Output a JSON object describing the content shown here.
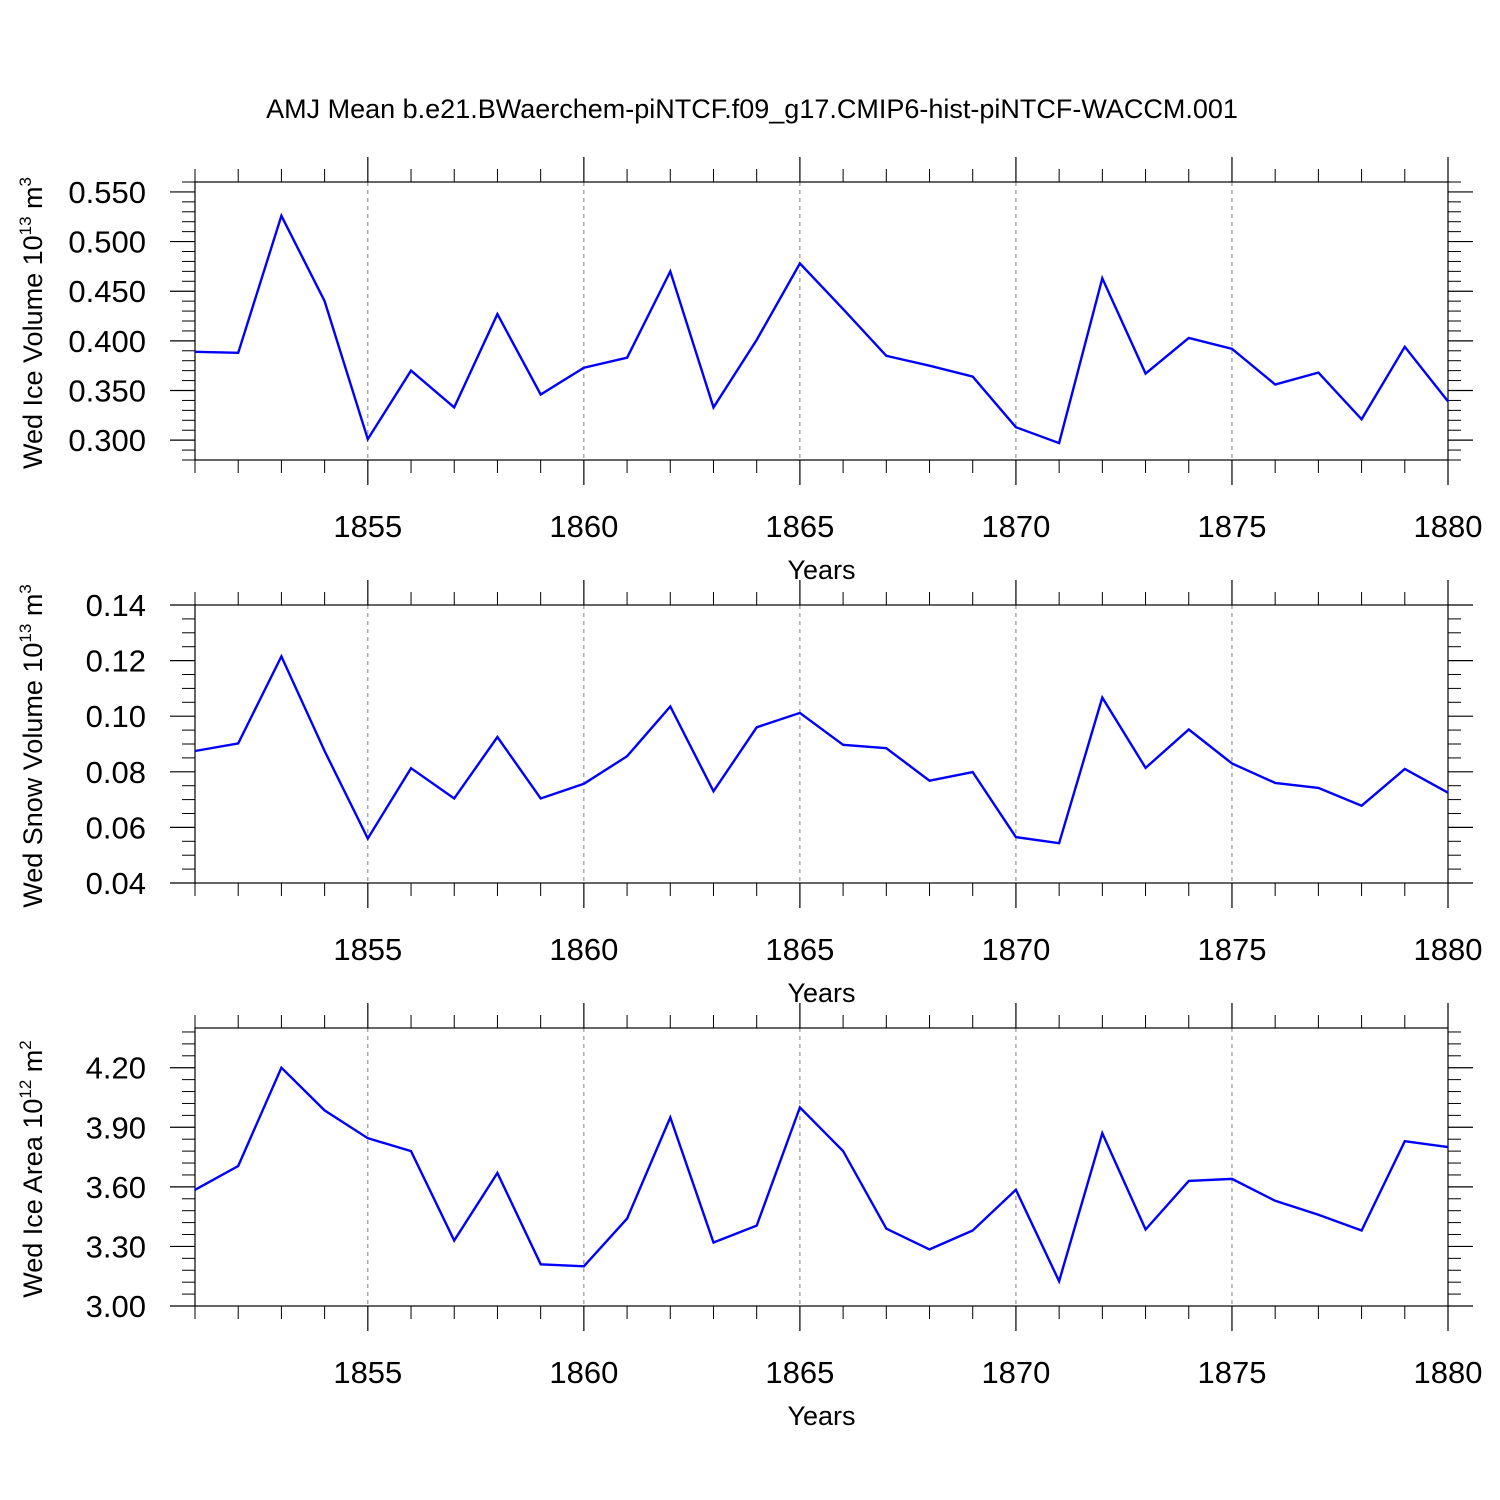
{
  "title": "AMJ Mean b.e21.BWaerchem-piNTCF.f09_g17.CMIP6-hist-piNTCF-WACCM.001",
  "colors": {
    "line": "#0000ff",
    "axis": "#000000",
    "grid": "#808080"
  },
  "chart_data": [
    {
      "type": "line",
      "ylabel_parts": {
        "prefix": "Wed Ice Volume 10",
        "exp": "13",
        "mid": " m",
        "unit_exp": "3"
      },
      "xlabel": "Years",
      "xlim": [
        1851,
        1880
      ],
      "ylim": [
        0.28,
        0.56
      ],
      "yticks": [
        0.3,
        0.35,
        0.4,
        0.45,
        0.5,
        0.55
      ],
      "ytick_labels": [
        "0.300",
        "0.350",
        "0.400",
        "0.450",
        "0.500",
        "0.550"
      ],
      "yminor_step": 0.01,
      "xticks": [
        1855,
        1860,
        1865,
        1870,
        1875,
        1880
      ],
      "xtick_labels": [
        "1855",
        "1860",
        "1865",
        "1870",
        "1875",
        "1880"
      ],
      "x": [
        1851,
        1852,
        1853,
        1854,
        1855,
        1856,
        1857,
        1858,
        1859,
        1860,
        1861,
        1862,
        1863,
        1864,
        1865,
        1866,
        1867,
        1868,
        1869,
        1870,
        1871,
        1872,
        1873,
        1874,
        1875,
        1876,
        1877,
        1878,
        1879,
        1880
      ],
      "values": [
        0.389,
        0.388,
        0.526,
        0.44,
        0.301,
        0.37,
        0.333,
        0.427,
        0.346,
        0.373,
        0.383,
        0.47,
        0.333,
        0.401,
        0.478,
        0.432,
        0.385,
        0.375,
        0.364,
        0.313,
        0.297,
        0.463,
        0.367,
        0.403,
        0.392,
        0.356,
        0.368,
        0.321,
        0.394,
        0.339
      ]
    },
    {
      "type": "line",
      "ylabel_parts": {
        "prefix": "Wed Snow Volume 10",
        "exp": "13",
        "mid": " m",
        "unit_exp": "3"
      },
      "xlabel": "Years",
      "xlim": [
        1851,
        1880
      ],
      "ylim": [
        0.04,
        0.14
      ],
      "yticks": [
        0.04,
        0.06,
        0.08,
        0.1,
        0.12,
        0.14
      ],
      "ytick_labels": [
        "0.04",
        "0.06",
        "0.08",
        "0.10",
        "0.12",
        "0.14"
      ],
      "yminor_step": 0.005,
      "xticks": [
        1855,
        1860,
        1865,
        1870,
        1875,
        1880
      ],
      "xtick_labels": [
        "1855",
        "1860",
        "1865",
        "1870",
        "1875",
        "1880"
      ],
      "x": [
        1851,
        1852,
        1853,
        1854,
        1855,
        1856,
        1857,
        1858,
        1859,
        1860,
        1861,
        1862,
        1863,
        1864,
        1865,
        1866,
        1867,
        1868,
        1869,
        1870,
        1871,
        1872,
        1873,
        1874,
        1875,
        1876,
        1877,
        1878,
        1879,
        1880
      ],
      "values": [
        0.0875,
        0.0902,
        0.1215,
        0.0875,
        0.056,
        0.0813,
        0.0704,
        0.0925,
        0.0704,
        0.0757,
        0.0856,
        0.1035,
        0.073,
        0.096,
        0.1012,
        0.0897,
        0.0885,
        0.0768,
        0.0799,
        0.0565,
        0.0543,
        0.1067,
        0.0814,
        0.0952,
        0.083,
        0.076,
        0.0742,
        0.0678,
        0.081,
        0.0725
      ]
    },
    {
      "type": "line",
      "ylabel_parts": {
        "prefix": "Wed Ice Area 10",
        "exp": "12",
        "mid": " m",
        "unit_exp": "2"
      },
      "xlabel": "Years",
      "xlim": [
        1851,
        1880
      ],
      "ylim": [
        3.0,
        4.4
      ],
      "yticks": [
        3.0,
        3.3,
        3.6,
        3.9,
        4.2
      ],
      "ytick_labels": [
        "3.00",
        "3.30",
        "3.60",
        "3.90",
        "4.20"
      ],
      "yminor_step": 0.06,
      "xticks": [
        1855,
        1860,
        1865,
        1870,
        1875,
        1880
      ],
      "xtick_labels": [
        "1855",
        "1860",
        "1865",
        "1870",
        "1875",
        "1880"
      ],
      "x": [
        1851,
        1852,
        1853,
        1854,
        1855,
        1856,
        1857,
        1858,
        1859,
        1860,
        1861,
        1862,
        1863,
        1864,
        1865,
        1866,
        1867,
        1868,
        1869,
        1870,
        1871,
        1872,
        1873,
        1874,
        1875,
        1876,
        1877,
        1878,
        1879,
        1880
      ],
      "values": [
        3.585,
        3.705,
        4.2,
        3.985,
        3.845,
        3.78,
        3.33,
        3.67,
        3.21,
        3.2,
        3.44,
        3.95,
        3.32,
        3.405,
        4.0,
        3.78,
        3.39,
        3.285,
        3.38,
        3.585,
        3.125,
        3.87,
        3.385,
        3.63,
        3.64,
        3.53,
        3.46,
        3.38,
        3.83,
        3.8
      ]
    }
  ]
}
